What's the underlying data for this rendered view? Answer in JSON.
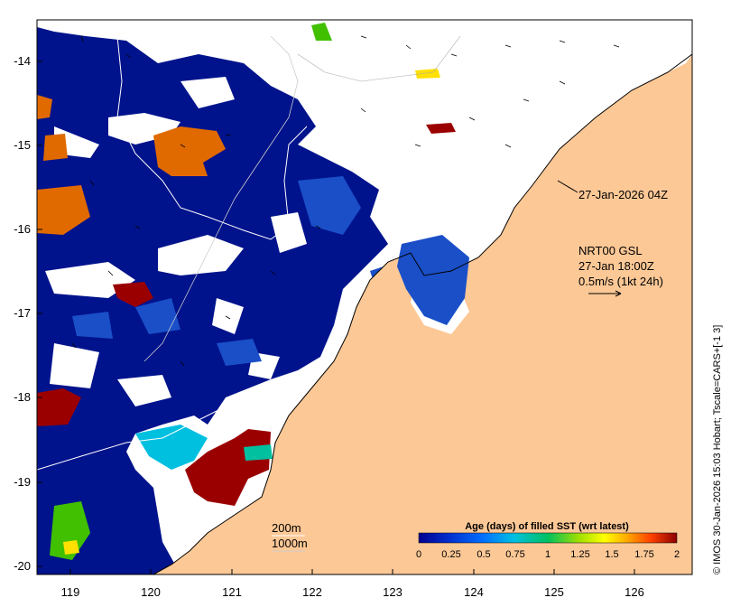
{
  "map": {
    "x_ticks": [
      "119",
      "120",
      "121",
      "122",
      "123",
      "124",
      "125",
      "126"
    ],
    "y_ticks": [
      "-14",
      "-15",
      "-16",
      "-17",
      "-18",
      "-19",
      "-20"
    ],
    "x_range": [
      118.6,
      126.7
    ],
    "y_range": [
      -20.1,
      -13.5
    ]
  },
  "annotations": {
    "timestamp": "27-Jan-2026 04Z",
    "model": "NRT00 GSL",
    "model_time": "27-Jan 18:00Z",
    "vector_scale": "0.5m/s (1kt 24h)",
    "contour_200": "200m",
    "contour_1000": "1000m"
  },
  "colorbar": {
    "title": "Age (days) of filled SST (wrt latest)",
    "tick_labels": [
      "0",
      "0.25",
      "0.5",
      "0.75",
      "1",
      "1.25",
      "1.5",
      "1.75",
      "2"
    ],
    "range": [
      0,
      2
    ]
  },
  "credit": "© IMOS 30-Jan-2026 15:03 Hobart; Tscale=CARS+[-1 3]",
  "colors": {
    "land": "#fcc896",
    "sst_fresh": "#00138c",
    "sst_mid": "#1a5fd6",
    "sst_old": "#9b0000",
    "sst_orange": "#e06a00"
  }
}
